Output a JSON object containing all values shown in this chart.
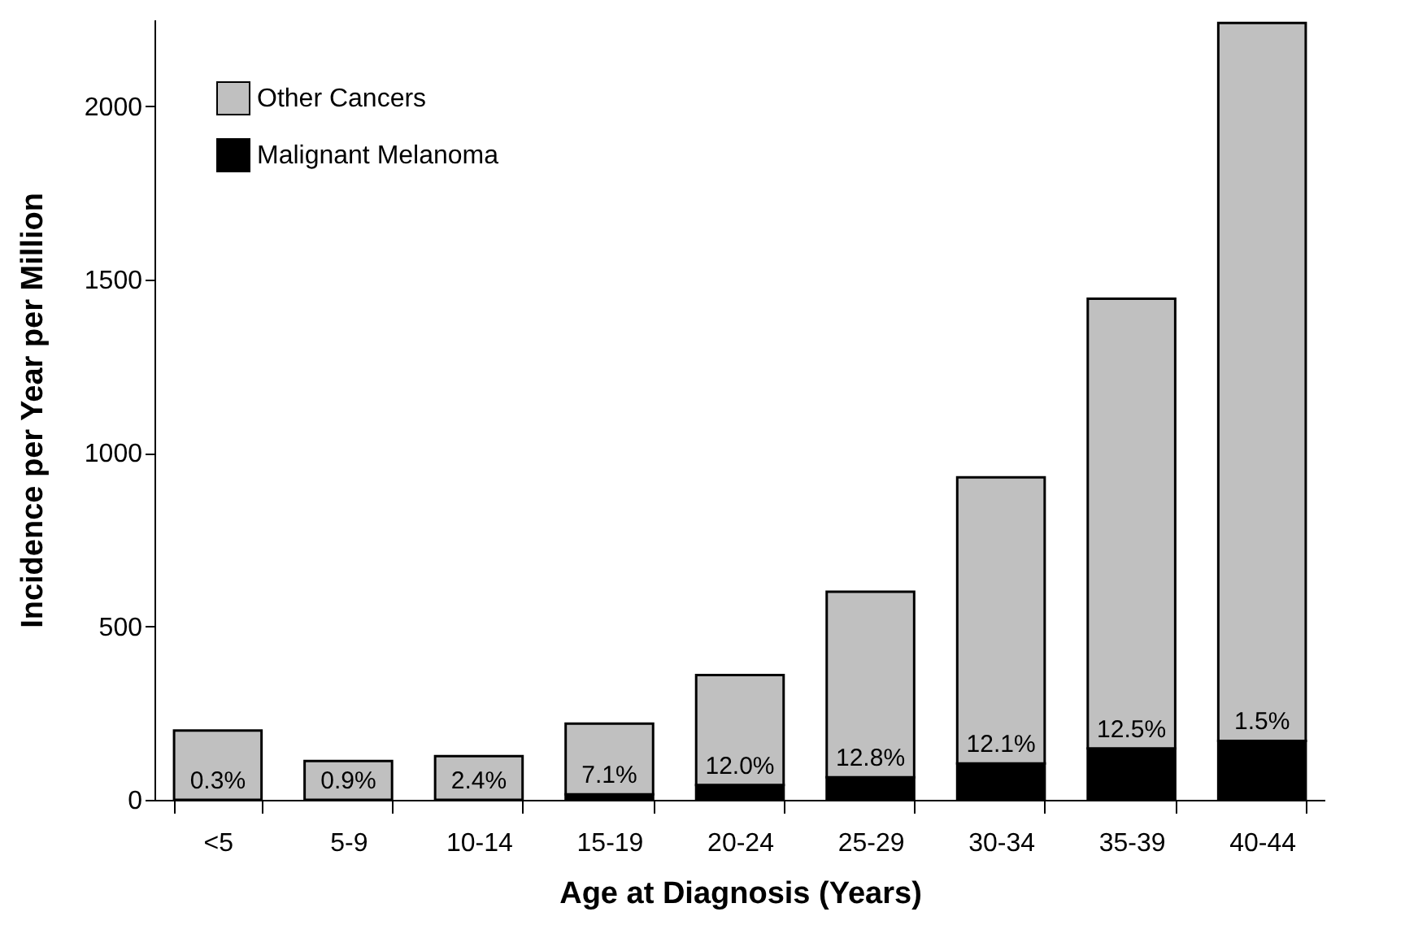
{
  "chart_data": {
    "type": "bar",
    "xlabel": "Age at Diagnosis (Years)",
    "ylabel": "Incidence per Year per Million",
    "categories": [
      "<5",
      "5-9",
      "10-14",
      "15-19",
      "20-24",
      "25-29",
      "30-34",
      "35-39",
      "40-44"
    ],
    "stacked": true,
    "series": [
      {
        "name": "Malignant Melanoma",
        "color": "#000000",
        "values": [
          null,
          null,
          null,
          16,
          43,
          65,
          105,
          148,
          170
        ]
      },
      {
        "name": "Other Cancers",
        "color": "#c0c0c0",
        "values": [
          200,
          112,
          126,
          204,
          317,
          535,
          825,
          1297,
          2070
        ]
      }
    ],
    "ylim": [
      0,
      2250
    ],
    "yticks": [
      0,
      500,
      1000,
      1500,
      2000
    ],
    "grid": false,
    "legend": "top left",
    "annotations": [
      {
        "text": "0.3%",
        "x": "<5",
        "y": 0
      },
      {
        "text": "0.9%",
        "x": "5-9",
        "y": 0
      },
      {
        "text": "2.4%",
        "x": "10-14",
        "y": 0
      },
      {
        "text": "7.1%",
        "x": "15-19",
        "y": 16
      },
      {
        "text": "12.0%",
        "x": "20-24",
        "y": 43
      },
      {
        "text": "12.8%",
        "x": "25-29",
        "y": 65
      },
      {
        "text": "12.1%",
        "x": "30-34",
        "y": 105
      },
      {
        "text": "12.5%",
        "x": "35-39",
        "y": 148
      },
      {
        "text": "1.5%",
        "x": "40-44",
        "y": 170
      }
    ]
  }
}
